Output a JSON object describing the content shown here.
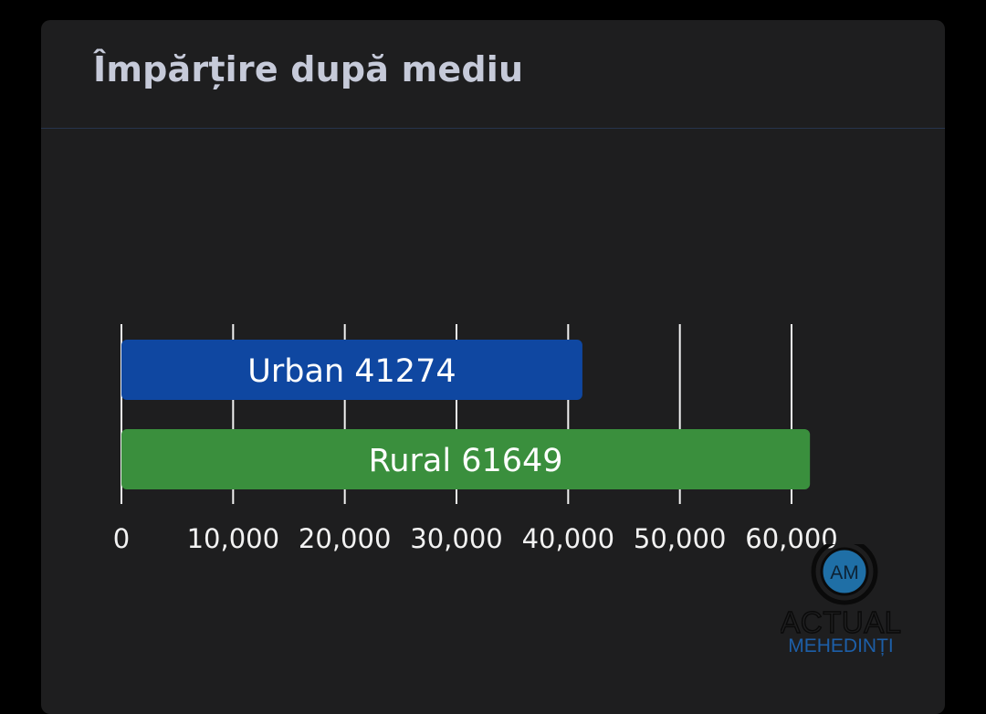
{
  "card": {
    "title": "Împărțire după mediu"
  },
  "chart_data": {
    "type": "bar",
    "orientation": "horizontal",
    "title": "",
    "xlabel": "",
    "ylabel": "",
    "categories": [
      "Urban",
      "Rural"
    ],
    "values": [
      41274,
      61649
    ],
    "bar_labels": [
      "Urban 41274",
      "Rural 61649"
    ],
    "colors": [
      "#0f47a1",
      "#3a8f3d"
    ],
    "xlim": [
      0,
      60000
    ],
    "xticks": [
      0,
      10000,
      20000,
      30000,
      40000,
      50000,
      60000
    ],
    "xtick_labels": [
      "0",
      "10,000",
      "20,000",
      "30,000",
      "40,000",
      "50,000",
      "60,000"
    ],
    "grid": "vertical",
    "legend": "none"
  },
  "watermark": {
    "badge": "AM",
    "line1": "ACTUAL",
    "line2": "MEHEDINȚI"
  }
}
